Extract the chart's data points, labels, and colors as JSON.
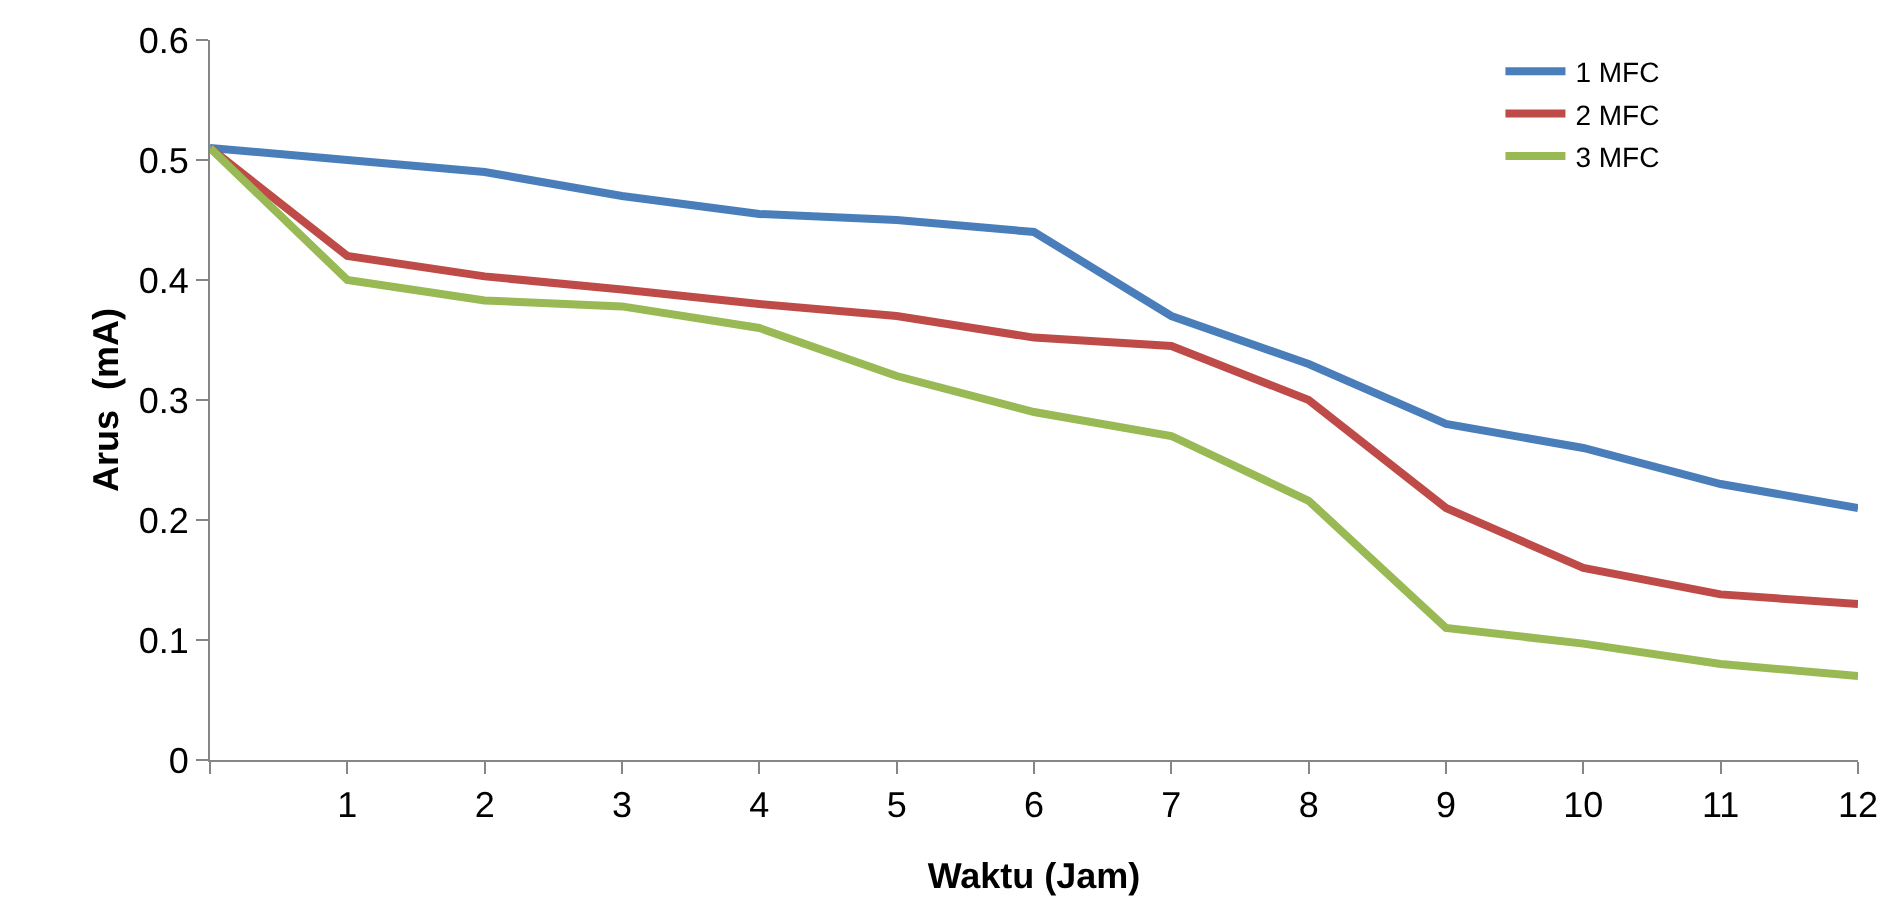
{
  "chart_data": {
    "type": "line",
    "xlabel": "Waktu (Jam)",
    "ylabel": "Arus  (mA)",
    "x": [
      0,
      1,
      2,
      3,
      4,
      5,
      6,
      7,
      8,
      9,
      10,
      11,
      12
    ],
    "series": [
      {
        "name": "1 MFC",
        "color": "#4a7ebb",
        "values": [
          0.51,
          0.5,
          0.49,
          0.47,
          0.455,
          0.45,
          0.44,
          0.37,
          0.33,
          0.28,
          0.26,
          0.23,
          0.21
        ]
      },
      {
        "name": "2 MFC",
        "color": "#be4b48",
        "values": [
          0.51,
          0.42,
          0.403,
          0.392,
          0.38,
          0.37,
          0.352,
          0.345,
          0.3,
          0.21,
          0.16,
          0.138,
          0.13
        ]
      },
      {
        "name": "3 MFC",
        "color": "#98b954",
        "values": [
          0.51,
          0.4,
          0.383,
          0.378,
          0.36,
          0.32,
          0.29,
          0.27,
          0.216,
          0.11,
          0.097,
          0.08,
          0.07
        ]
      }
    ],
    "xlim": [
      0,
      12
    ],
    "xticks": [
      {
        "value": 0,
        "label": null
      },
      1,
      2,
      3,
      4,
      5,
      6,
      7,
      8,
      9,
      10,
      11,
      12
    ],
    "ylim": [
      0,
      0.6
    ],
    "yticks": [
      0,
      0.1,
      0.2,
      0.3,
      0.4,
      0.5,
      0.6
    ],
    "grid": false,
    "legend": "top right",
    "marker": "none",
    "line_style": "solid"
  }
}
